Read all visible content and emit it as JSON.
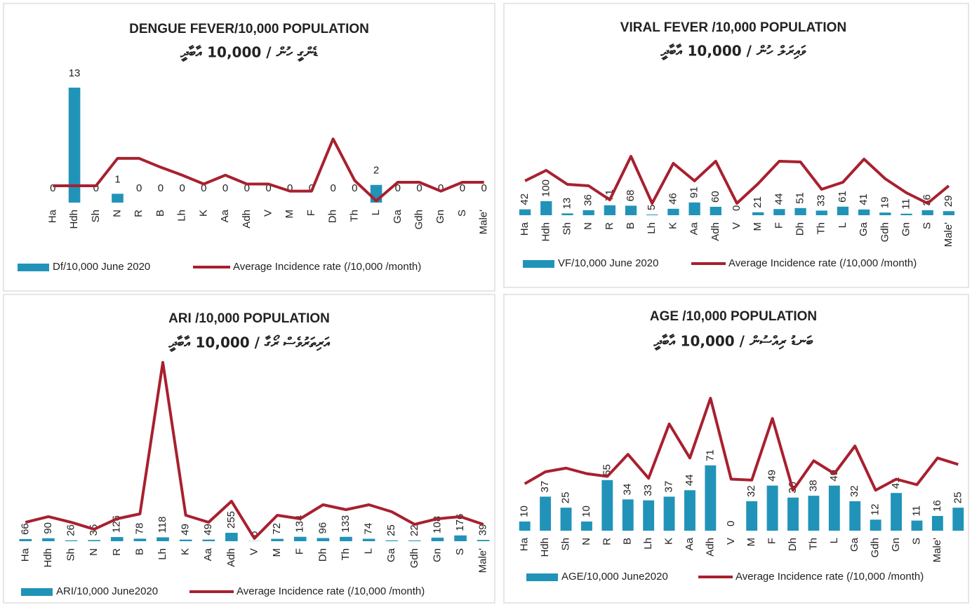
{
  "chart_data": [
    {
      "type": "bar",
      "title": "DENGUE FEVER/10,000 POPULATION",
      "subtitle": "ޑެންގީ ހުން / 10,000 އާބާދީ",
      "categories": [
        "Ha",
        "Hdh",
        "Sh",
        "N",
        "R",
        "B",
        "Lh",
        "K",
        "Aa",
        "Adh",
        "V",
        "M",
        "F",
        "Dh",
        "Th",
        "L",
        "Ga",
        "Gdh",
        "Gn",
        "S",
        "Male'"
      ],
      "series": [
        {
          "name": "Df/10,000 June 2020",
          "type": "bar",
          "color": "#2193b9",
          "values": [
            0,
            13,
            0,
            1,
            0,
            0,
            0,
            0,
            0,
            0,
            0,
            0,
            0,
            0,
            0,
            2,
            0,
            0,
            0,
            0,
            0
          ]
        },
        {
          "name": "Average Incidence rate (/10,000 /month)",
          "type": "line",
          "color": "#a8202f",
          "values": [
            1.9,
            1.9,
            1.9,
            5.0,
            5.0,
            4.0,
            3.1,
            2.1,
            3.1,
            2.1,
            2.1,
            1.3,
            1.3,
            7.2,
            2.5,
            0.2,
            2.3,
            2.3,
            1.3,
            2.3,
            2.3
          ]
        }
      ]
    },
    {
      "type": "bar",
      "title": "VIRAL FEVER /10,000 POPULATION",
      "subtitle": "ވައިރަލް ހުން / 10,000 އާބާދީ",
      "categories": [
        "Ha",
        "Hdh",
        "Sh",
        "N",
        "R",
        "B",
        "Lh",
        "K",
        "Aa",
        "Adh",
        "V",
        "M",
        "F",
        "Dh",
        "Th",
        "L",
        "Ga",
        "Gdh",
        "Gn",
        "S",
        "Male'"
      ],
      "series": [
        {
          "name": "VF/10,000 June 2020",
          "type": "bar",
          "color": "#2193b9",
          "values": [
            42,
            100,
            13,
            36,
            71,
            68,
            5,
            46,
            91,
            60,
            0,
            21,
            44,
            51,
            33,
            61,
            41,
            19,
            11,
            36,
            29
          ]
        },
        {
          "name": "Average Incidence rate (/10,000 /month)",
          "type": "line",
          "color": "#a8202f",
          "values": [
            245,
            320,
            220,
            210,
            110,
            420,
            85,
            370,
            245,
            385,
            85,
            225,
            385,
            380,
            185,
            235,
            400,
            260,
            160,
            85,
            210
          ]
        }
      ]
    },
    {
      "type": "bar",
      "title": "ARI /10,000 POPULATION",
      "subtitle": "އަރިތަރުވެސް ރޯގާ / 10,000 އާބާދީ",
      "categories": [
        "Ha",
        "Hdh",
        "Sh",
        "N",
        "R",
        "B",
        "Lh",
        "K",
        "Aa",
        "Adh",
        "V",
        "M",
        "F",
        "Dh",
        "Th",
        "L",
        "Ga",
        "Gdh",
        "Gn",
        "S",
        "Male'"
      ],
      "series": [
        {
          "name": "ARI/10,000 June2020",
          "type": "bar",
          "color": "#2193b9",
          "values": [
            66,
            90,
            26,
            35,
            126,
            78,
            118,
            49,
            49,
            255,
            6,
            72,
            134,
            96,
            133,
            74,
            25,
            22,
            108,
            176,
            39
          ]
        },
        {
          "name": "Average Incidence rate (/10,000 /month)",
          "type": "line",
          "color": "#a8202f",
          "values": [
            574,
            745,
            574,
            362,
            681,
            830,
            5425,
            787,
            574,
            1213,
            85,
            787,
            681,
            1106,
            957,
            1106,
            894,
            511,
            681,
            745,
            511
          ]
        }
      ]
    },
    {
      "type": "bar",
      "title": "AGE /10,000 POPULATION",
      "subtitle": "ބަނޑު ރިއްސުން / 10,000 އާބާދީ",
      "categories": [
        "Ha",
        "Hdh",
        "Sh",
        "N",
        "R",
        "B",
        "Lh",
        "K",
        "Aa",
        "Adh",
        "V",
        "M",
        "F",
        "Dh",
        "Th",
        "L",
        "Ga",
        "Gdh",
        "Gn",
        "S",
        "Male'",
        null
      ],
      "series": [
        {
          "name": "AGE/10,000 June2020",
          "type": "bar",
          "color": "#2193b9",
          "values": [
            10,
            37,
            25,
            10,
            55,
            34,
            33,
            37,
            44,
            71,
            0,
            32,
            49,
            36,
            38,
            49,
            32,
            12,
            41,
            11,
            16,
            25
          ]
        },
        {
          "name": "Average Incidence rate (/10,000 /month)",
          "type": "line",
          "color": "#a8202f",
          "values": [
            51,
            64,
            68,
            62,
            59,
            83,
            57,
            116,
            79,
            144,
            56,
            55,
            122,
            44,
            76,
            62,
            92,
            44,
            56,
            50,
            79,
            72
          ]
        }
      ]
    }
  ]
}
